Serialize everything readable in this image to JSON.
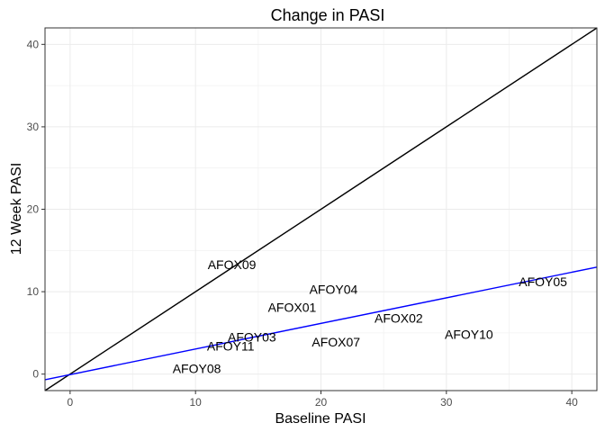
{
  "chart_data": {
    "type": "scatter",
    "title": "Change in PASI",
    "xlabel": "Baseline PASI",
    "ylabel": "12 Week PASI",
    "xlim": [
      -2,
      42
    ],
    "ylim": [
      -2,
      42
    ],
    "x_ticks": [
      0,
      10,
      20,
      30,
      40
    ],
    "y_ticks": [
      0,
      10,
      20,
      30,
      40
    ],
    "grid": true,
    "points": [
      {
        "label": "AFOX09",
        "x": 12.9,
        "y": 13.3
      },
      {
        "label": "AFOY04",
        "x": 21.0,
        "y": 10.3
      },
      {
        "label": "AFOY05",
        "x": 37.7,
        "y": 11.2
      },
      {
        "label": "AFOX01",
        "x": 17.7,
        "y": 8.1
      },
      {
        "label": "AFOX02",
        "x": 26.2,
        "y": 6.8
      },
      {
        "label": "AFOY03",
        "x": 14.5,
        "y": 4.5
      },
      {
        "label": "AFOY10",
        "x": 31.8,
        "y": 4.8
      },
      {
        "label": "AFOX07",
        "x": 21.2,
        "y": 3.9
      },
      {
        "label": "AFOY11",
        "x": 12.8,
        "y": 3.4
      },
      {
        "label": "AFOY08",
        "x": 10.1,
        "y": 0.7
      }
    ],
    "lines": [
      {
        "kind": "identity",
        "color": "#000000",
        "x": [
          -2,
          42
        ],
        "y": [
          -2,
          42
        ]
      },
      {
        "kind": "fit",
        "color": "#0000ff",
        "x": [
          -2,
          42
        ],
        "y": [
          -0.68,
          12.98
        ]
      }
    ]
  }
}
